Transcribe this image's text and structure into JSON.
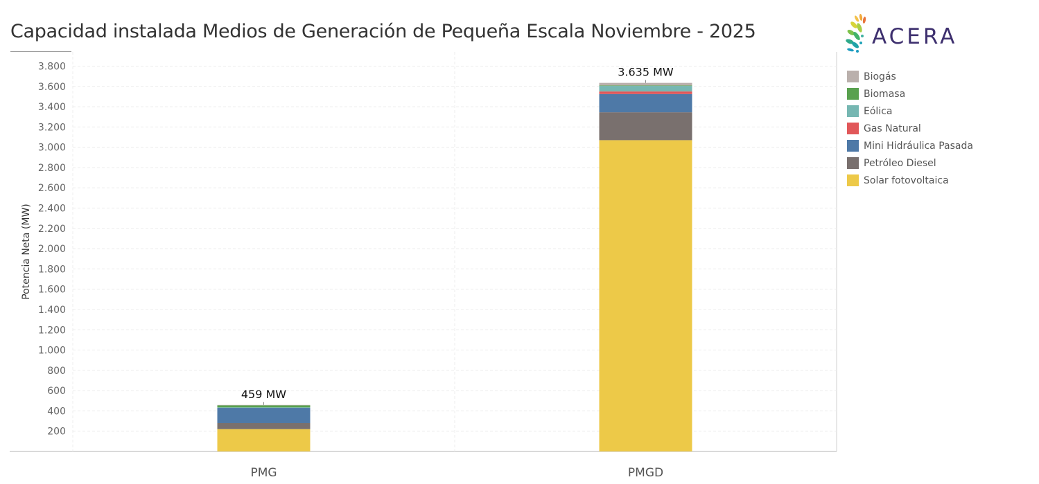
{
  "title": "Capacidad instalada Medios de Generación de Pequeña Escala Noviembre - 2025",
  "logo": {
    "text": "ACERA",
    "icon": "acera-leaf-icon"
  },
  "legend": [
    {
      "label": "Biogás",
      "color": "#bab0ac"
    },
    {
      "label": "Biomasa",
      "color": "#59a14f"
    },
    {
      "label": "Eólica",
      "color": "#76b7b2"
    },
    {
      "label": "Gas Natural",
      "color": "#e15759"
    },
    {
      "label": "Mini Hidráulica Pasada",
      "color": "#4e79a7"
    },
    {
      "label": "Petróleo Diesel",
      "color": "#79706e"
    },
    {
      "label": "Solar fotovoltaica",
      "color": "#edc948"
    }
  ],
  "chart_data": {
    "type": "bar",
    "stacked": true,
    "categories": [
      "PMG",
      "PMGD"
    ],
    "ylabel": "Potencia Neta (MW)",
    "xlabel": "",
    "ylim": [
      0,
      3940
    ],
    "yticks": [
      200,
      400,
      600,
      800,
      1000,
      1200,
      1400,
      1600,
      1800,
      2000,
      2200,
      2400,
      2600,
      2800,
      3000,
      3200,
      3400,
      3600,
      3800
    ],
    "ytick_labels": [
      "200",
      "400",
      "600",
      "800",
      "1.000",
      "1.200",
      "1.400",
      "1.600",
      "1.800",
      "2.000",
      "2.200",
      "2.400",
      "2.600",
      "2.800",
      "3.000",
      "3.200",
      "3.400",
      "3.600",
      "3.800"
    ],
    "grid": true,
    "legend_position": "right",
    "series": [
      {
        "name": "Solar fotovoltaica",
        "color": "#edc948",
        "values": [
          220,
          3070
        ]
      },
      {
        "name": "Petróleo Diesel",
        "color": "#79706e",
        "values": [
          60,
          275
        ]
      },
      {
        "name": "Mini Hidráulica Pasada",
        "color": "#4e79a7",
        "values": [
          150,
          180
        ]
      },
      {
        "name": "Gas Natural",
        "color": "#e15759",
        "values": [
          0,
          25
        ]
      },
      {
        "name": "Eólica",
        "color": "#76b7b2",
        "values": [
          5,
          55
        ]
      },
      {
        "name": "Biomasa",
        "color": "#59a14f",
        "values": [
          20,
          5
        ]
      },
      {
        "name": "Biogás",
        "color": "#bab0ac",
        "values": [
          4,
          25
        ]
      }
    ],
    "totals": [
      459,
      3635
    ],
    "total_labels": [
      "459 MW",
      "3.635 MW"
    ]
  }
}
